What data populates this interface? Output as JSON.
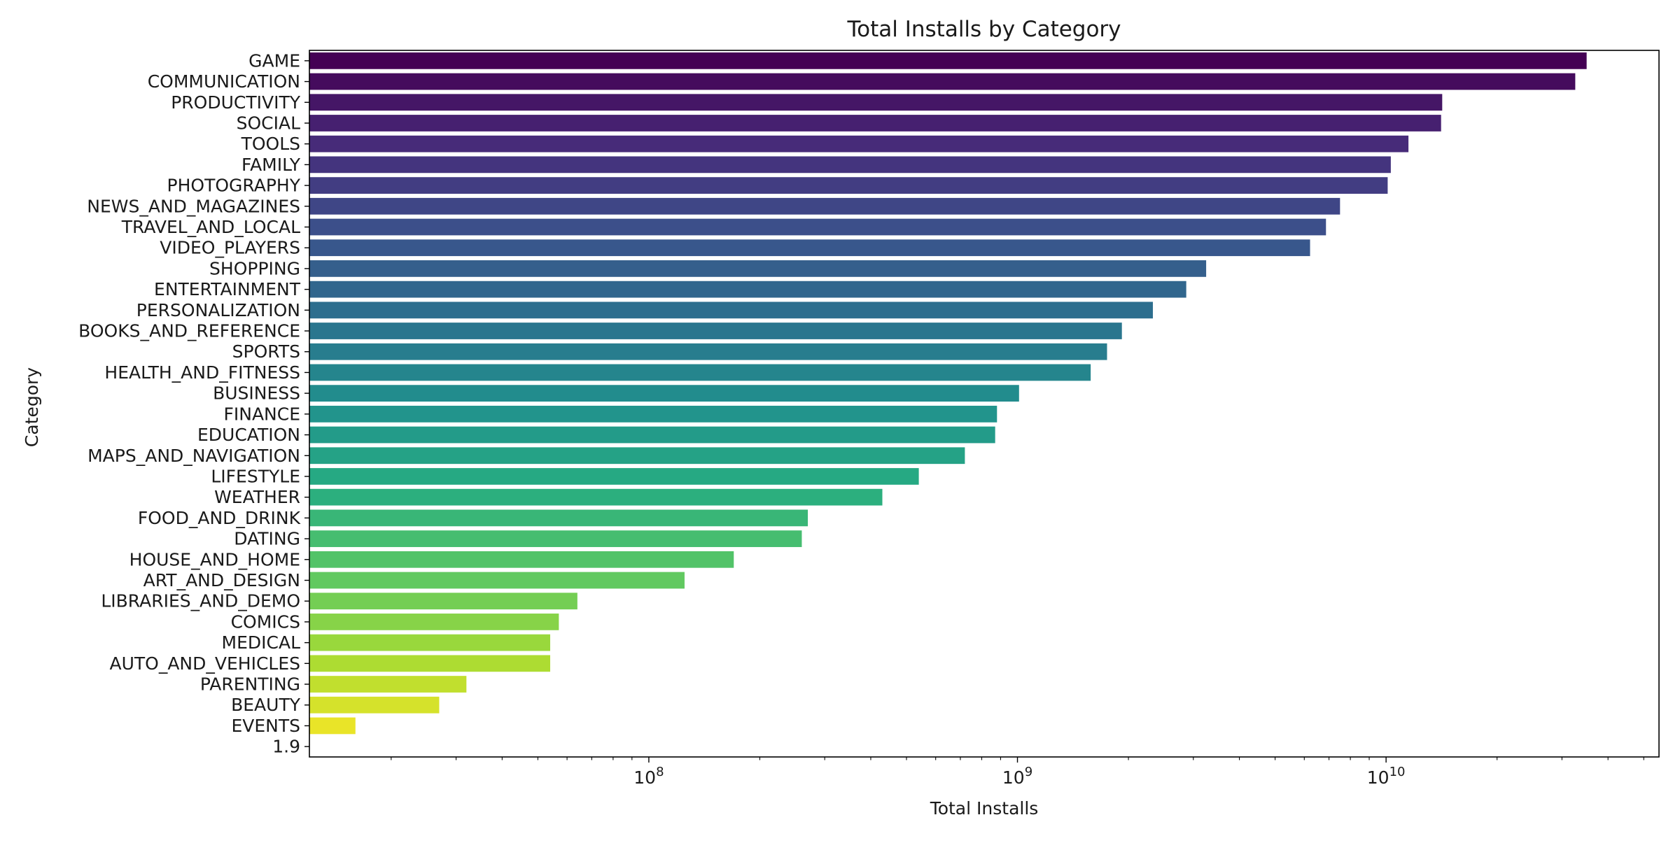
{
  "chart_data": {
    "type": "bar",
    "orientation": "horizontal",
    "title": "Total Installs by Category",
    "xlabel": "Total Installs",
    "ylabel": "Category",
    "x_scale": "log",
    "xlim": [
      12000000,
      55000000000
    ],
    "x_major_ticks": [
      {
        "value": 100000000,
        "base": "10",
        "exp": "8"
      },
      {
        "value": 1000000000,
        "base": "10",
        "exp": "9"
      },
      {
        "value": 10000000000,
        "base": "10",
        "exp": "10"
      }
    ],
    "grid": false,
    "palette": "viridis",
    "categories": [
      "GAME",
      "COMMUNICATION",
      "PRODUCTIVITY",
      "SOCIAL",
      "TOOLS",
      "FAMILY",
      "PHOTOGRAPHY",
      "NEWS_AND_MAGAZINES",
      "TRAVEL_AND_LOCAL",
      "VIDEO_PLAYERS",
      "SHOPPING",
      "ENTERTAINMENT",
      "PERSONALIZATION",
      "BOOKS_AND_REFERENCE",
      "SPORTS",
      "HEALTH_AND_FITNESS",
      "BUSINESS",
      "FINANCE",
      "EDUCATION",
      "MAPS_AND_NAVIGATION",
      "LIFESTYLE",
      "WEATHER",
      "FOOD_AND_DRINK",
      "DATING",
      "HOUSE_AND_HOME",
      "ART_AND_DESIGN",
      "LIBRARIES_AND_DEMO",
      "COMICS",
      "MEDICAL",
      "AUTO_AND_VEHICLES",
      "PARENTING",
      "BEAUTY",
      "EVENTS",
      "1.9"
    ],
    "values": [
      35000000000,
      32600000000,
      14200000000,
      14100000000,
      11500000000,
      10300000000,
      10100000000,
      7500000000,
      6870000000,
      6220000000,
      3250000000,
      2870000000,
      2330000000,
      1920000000,
      1750000000,
      1580000000,
      1010000000,
      880000000,
      870000000,
      720000000,
      540000000,
      430000000,
      270000000,
      260000000,
      170000000,
      125000000,
      64000000,
      57000000,
      54000000,
      54000000,
      32000000,
      27000000,
      16000000,
      0
    ]
  }
}
